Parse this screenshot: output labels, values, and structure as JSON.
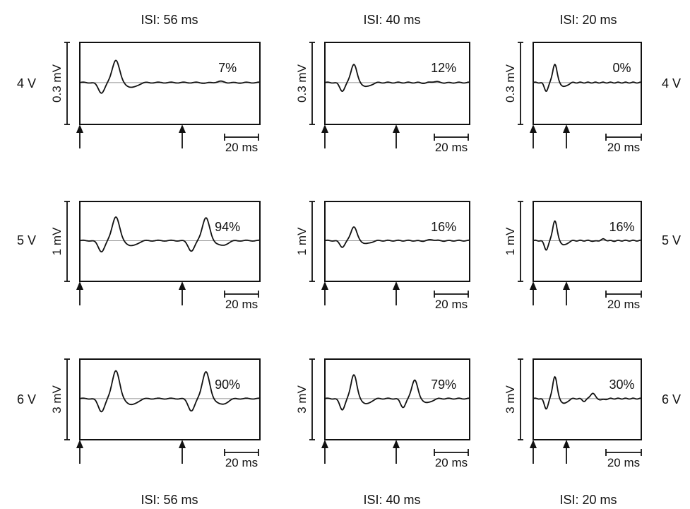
{
  "chart_data": {
    "type": "line",
    "columns": [
      "ISI: 56 ms",
      "ISI: 40 ms",
      "ISI: 20 ms"
    ],
    "rows": [
      "4 V",
      "5 V",
      "6 V"
    ],
    "scale_bar_label": "20 ms",
    "panels": [
      {
        "row": 0,
        "col": 0,
        "voltage_scale": "0.3 mV",
        "percent": "7%"
      },
      {
        "row": 0,
        "col": 1,
        "voltage_scale": "0.3 mV",
        "percent": "12%"
      },
      {
        "row": 0,
        "col": 2,
        "voltage_scale": "0.3 mV",
        "percent": "0%"
      },
      {
        "row": 1,
        "col": 0,
        "voltage_scale": "1 mV",
        "percent": "94%"
      },
      {
        "row": 1,
        "col": 1,
        "voltage_scale": "1 mV",
        "percent": "16%"
      },
      {
        "row": 1,
        "col": 2,
        "voltage_scale": "1 mV",
        "percent": "16%"
      },
      {
        "row": 2,
        "col": 0,
        "voltage_scale": "3 mV",
        "percent": "90%"
      },
      {
        "row": 2,
        "col": 1,
        "voltage_scale": "3 mV",
        "percent": "79%"
      },
      {
        "row": 2,
        "col": 2,
        "voltage_scale": "3 mV",
        "percent": "30%"
      }
    ]
  }
}
